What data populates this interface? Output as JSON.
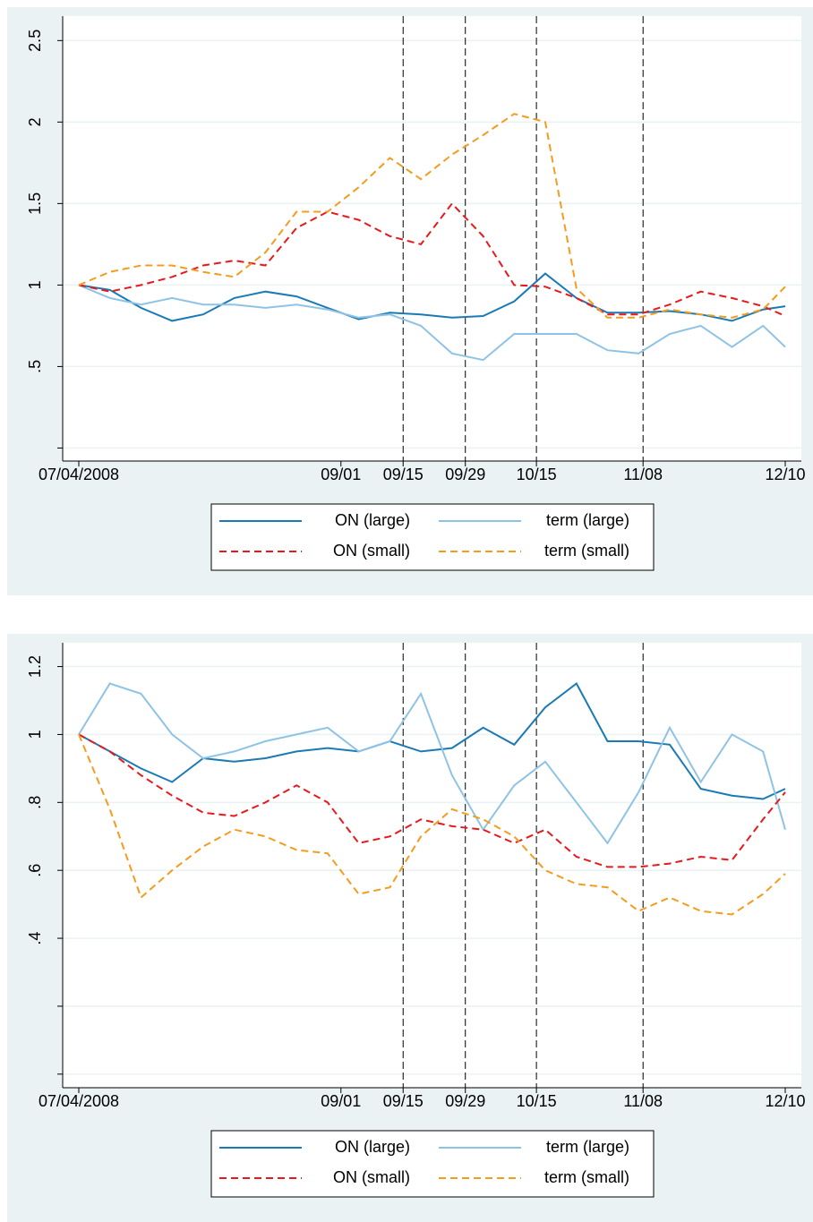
{
  "chart_data": [
    {
      "type": "line",
      "x": [
        "2008-07-04",
        "2008-07-11",
        "2008-07-18",
        "2008-07-25",
        "2008-08-01",
        "2008-08-08",
        "2008-08-15",
        "2008-08-22",
        "2008-08-29",
        "2008-09-05",
        "2008-09-12",
        "2008-09-19",
        "2008-09-26",
        "2008-10-03",
        "2008-10-10",
        "2008-10-17",
        "2008-10-24",
        "2008-10-31",
        "2008-11-07",
        "2008-11-14",
        "2008-11-21",
        "2008-11-28",
        "2008-12-05",
        "2008-12-10"
      ],
      "xlim": [
        "2008-07-04",
        "2008-12-10"
      ],
      "xticks": [
        {
          "value": "2008-07-04",
          "label": "07/04/2008"
        },
        {
          "value": "2008-09-01",
          "label": "09/01"
        },
        {
          "value": "2008-09-15",
          "label": "09/15"
        },
        {
          "value": "2008-09-29",
          "label": "09/29"
        },
        {
          "value": "2008-10-15",
          "label": "10/15"
        },
        {
          "value": "2008-11-08",
          "label": "11/08"
        },
        {
          "value": "2008-12-10",
          "label": "12/10"
        }
      ],
      "vlines": [
        "2008-09-15",
        "2008-09-29",
        "2008-10-15",
        "2008-11-08"
      ],
      "ylim": [
        -0.08,
        2.65
      ],
      "yticks": [
        {
          "value": 0,
          "label": null
        },
        {
          "value": 0.5,
          "label": ".5"
        },
        1,
        1.5,
        2,
        2.5
      ],
      "grid": true,
      "series": [
        {
          "name": "ON (large)",
          "color": "#1a7ab5",
          "dash": false,
          "values": [
            1,
            0.97,
            0.86,
            0.78,
            0.82,
            0.92,
            0.96,
            0.93,
            0.86,
            0.79,
            0.83,
            0.82,
            0.8,
            0.81,
            0.9,
            1.07,
            0.92,
            0.83,
            0.83,
            0.84,
            0.82,
            0.78,
            0.85,
            0.87
          ]
        },
        {
          "name": "term (large)",
          "color": "#8fc3e6",
          "dash": false,
          "values": [
            1,
            0.92,
            0.88,
            0.92,
            0.88,
            0.88,
            0.86,
            0.88,
            0.85,
            0.8,
            0.82,
            0.75,
            0.58,
            0.54,
            0.7,
            0.7,
            0.7,
            0.6,
            0.58,
            0.7,
            0.75,
            0.62,
            0.75,
            0.62
          ]
        },
        {
          "name": "ON (small)",
          "color": "#e8191c",
          "dash": true,
          "values": [
            1,
            0.96,
            1.0,
            1.05,
            1.12,
            1.15,
            1.12,
            1.35,
            1.45,
            1.4,
            1.3,
            1.25,
            1.5,
            1.3,
            1.0,
            0.99,
            0.92,
            0.82,
            0.82,
            0.88,
            0.96,
            0.92,
            0.87,
            0.81
          ]
        },
        {
          "name": "term (small)",
          "color": "#f39c1d",
          "dash": true,
          "values": [
            1,
            1.08,
            1.12,
            1.12,
            1.08,
            1.05,
            1.2,
            1.45,
            1.45,
            1.6,
            1.78,
            1.65,
            1.8,
            1.92,
            2.05,
            2.0,
            0.98,
            0.8,
            0.8,
            0.85,
            0.82,
            0.8,
            0.85,
            0.99
          ]
        }
      ]
    },
    {
      "type": "line",
      "x": [
        "2008-07-04",
        "2008-07-11",
        "2008-07-18",
        "2008-07-25",
        "2008-08-01",
        "2008-08-08",
        "2008-08-15",
        "2008-08-22",
        "2008-08-29",
        "2008-09-05",
        "2008-09-12",
        "2008-09-19",
        "2008-09-26",
        "2008-10-03",
        "2008-10-10",
        "2008-10-17",
        "2008-10-24",
        "2008-10-31",
        "2008-11-07",
        "2008-11-14",
        "2008-11-21",
        "2008-11-28",
        "2008-12-05",
        "2008-12-10"
      ],
      "xlim": [
        "2008-07-04",
        "2008-12-10"
      ],
      "xticks": [
        {
          "value": "2008-07-04",
          "label": "07/04/2008"
        },
        {
          "value": "2008-09-01",
          "label": "09/01"
        },
        {
          "value": "2008-09-15",
          "label": "09/15"
        },
        {
          "value": "2008-09-29",
          "label": "09/29"
        },
        {
          "value": "2008-10-15",
          "label": "10/15"
        },
        {
          "value": "2008-11-08",
          "label": "11/08"
        },
        {
          "value": "2008-12-10",
          "label": "12/10"
        }
      ],
      "vlines": [
        "2008-09-15",
        "2008-09-29",
        "2008-10-15",
        "2008-11-08"
      ],
      "ylim": [
        -0.04,
        1.27
      ],
      "yticks": [
        {
          "value": 0,
          "label": null
        },
        {
          "value": 0.2,
          "label": null
        },
        {
          "value": 0.4,
          "label": ".4"
        },
        {
          "value": 0.6,
          "label": ".6"
        },
        {
          "value": 0.8,
          "label": ".8"
        },
        1,
        1.2
      ],
      "grid": true,
      "series": [
        {
          "name": "ON (large)",
          "color": "#1a7ab5",
          "dash": false,
          "values": [
            1,
            0.95,
            0.9,
            0.86,
            0.93,
            0.92,
            0.93,
            0.95,
            0.96,
            0.95,
            0.98,
            0.95,
            0.96,
            1.02,
            0.97,
            1.08,
            1.15,
            0.98,
            0.98,
            0.97,
            0.84,
            0.82,
            0.81,
            0.84
          ]
        },
        {
          "name": "term (large)",
          "color": "#8fc3e6",
          "dash": false,
          "values": [
            1,
            1.15,
            1.12,
            1.0,
            0.93,
            0.95,
            0.98,
            1.0,
            1.02,
            0.95,
            0.98,
            1.12,
            0.88,
            0.72,
            0.85,
            0.92,
            0.8,
            0.68,
            0.83,
            1.02,
            0.86,
            1.0,
            0.95,
            0.72
          ]
        },
        {
          "name": "ON (small)",
          "color": "#e8191c",
          "dash": true,
          "values": [
            1,
            0.95,
            0.88,
            0.82,
            0.77,
            0.76,
            0.8,
            0.85,
            0.8,
            0.68,
            0.7,
            0.75,
            0.73,
            0.72,
            0.68,
            0.72,
            0.64,
            0.61,
            0.61,
            0.62,
            0.64,
            0.63,
            0.75,
            0.83
          ]
        },
        {
          "name": "term (small)",
          "color": "#f39c1d",
          "dash": true,
          "values": [
            1,
            0.78,
            0.52,
            0.6,
            0.67,
            0.72,
            0.7,
            0.66,
            0.65,
            0.53,
            0.55,
            0.7,
            0.78,
            0.75,
            0.7,
            0.6,
            0.56,
            0.55,
            0.48,
            0.52,
            0.48,
            0.47,
            0.53,
            0.59
          ]
        }
      ]
    }
  ]
}
